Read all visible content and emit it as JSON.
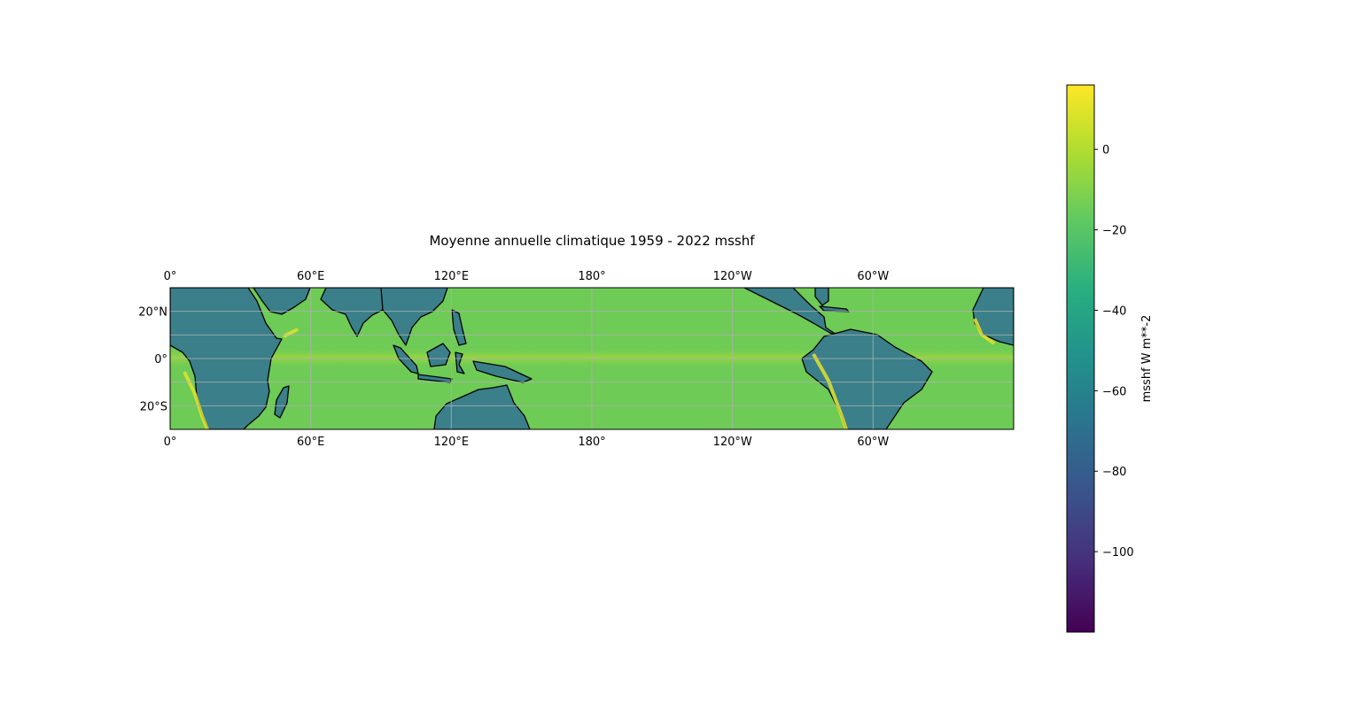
{
  "chart_data": {
    "type": "heatmap",
    "title": "Moyenne annuelle climatique 1959 - 2022 msshf",
    "projection": "PlateCarree, central longitude 180",
    "extent": {
      "lon": [
        0,
        360
      ],
      "lat": [
        -30,
        30
      ]
    },
    "gridlines": true,
    "x_ticks": [
      {
        "lon": 0,
        "label": "0°"
      },
      {
        "lon": 60,
        "label": "60°E"
      },
      {
        "lon": 120,
        "label": "120°E"
      },
      {
        "lon": 180,
        "label": "180°"
      },
      {
        "lon": 240,
        "label": "120°W"
      },
      {
        "lon": 300,
        "label": "60°W"
      }
    ],
    "y_ticks": [
      {
        "lat": 20,
        "label": "20°N"
      },
      {
        "lat": 0,
        "label": "0°"
      },
      {
        "lat": -20,
        "label": "20°S"
      }
    ],
    "colorbar": {
      "label": "msshf W m**-2",
      "colormap": "viridis",
      "vmin": -120,
      "vmax": 16,
      "ticks": [
        {
          "value": 0,
          "label": "0"
        },
        {
          "value": -20,
          "label": "−20"
        },
        {
          "value": -40,
          "label": "−40"
        },
        {
          "value": -60,
          "label": "−60"
        },
        {
          "value": -80,
          "label": "−80"
        },
        {
          "value": -100,
          "label": "−100"
        }
      ]
    },
    "field_summary": {
      "open_ocean": -15,
      "equatorial_band": -5,
      "coastal_upwelling": 10,
      "land": -55
    }
  }
}
